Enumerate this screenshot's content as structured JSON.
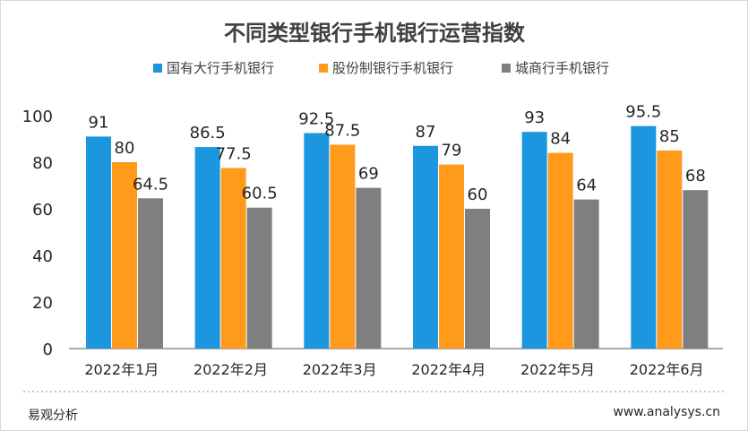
{
  "chart_data": {
    "type": "bar",
    "title": "不同类型银行手机银行运营指数",
    "categories": [
      "2022年1月",
      "2022年2月",
      "2022年3月",
      "2022年4月",
      "2022年5月",
      "2022年6月"
    ],
    "series": [
      {
        "name": "国有大行手机银行",
        "color": "#1c96de",
        "values": [
          91,
          86.5,
          92.5,
          87,
          93,
          95.5
        ]
      },
      {
        "name": "股份制银行手机银行",
        "color": "#ff9a1a",
        "values": [
          80,
          77.5,
          87.5,
          79,
          84,
          85
        ]
      },
      {
        "name": "城商行手机银行",
        "color": "#7f7f7f",
        "values": [
          64.5,
          60.5,
          69,
          60,
          64,
          68
        ]
      }
    ],
    "ylim": [
      0,
      100
    ],
    "yticks": [
      0,
      20,
      40,
      60,
      80,
      100
    ],
    "legend_position": "top",
    "grid": false
  },
  "footer": {
    "source": "易观分析",
    "url": "www.analysys.cn"
  }
}
